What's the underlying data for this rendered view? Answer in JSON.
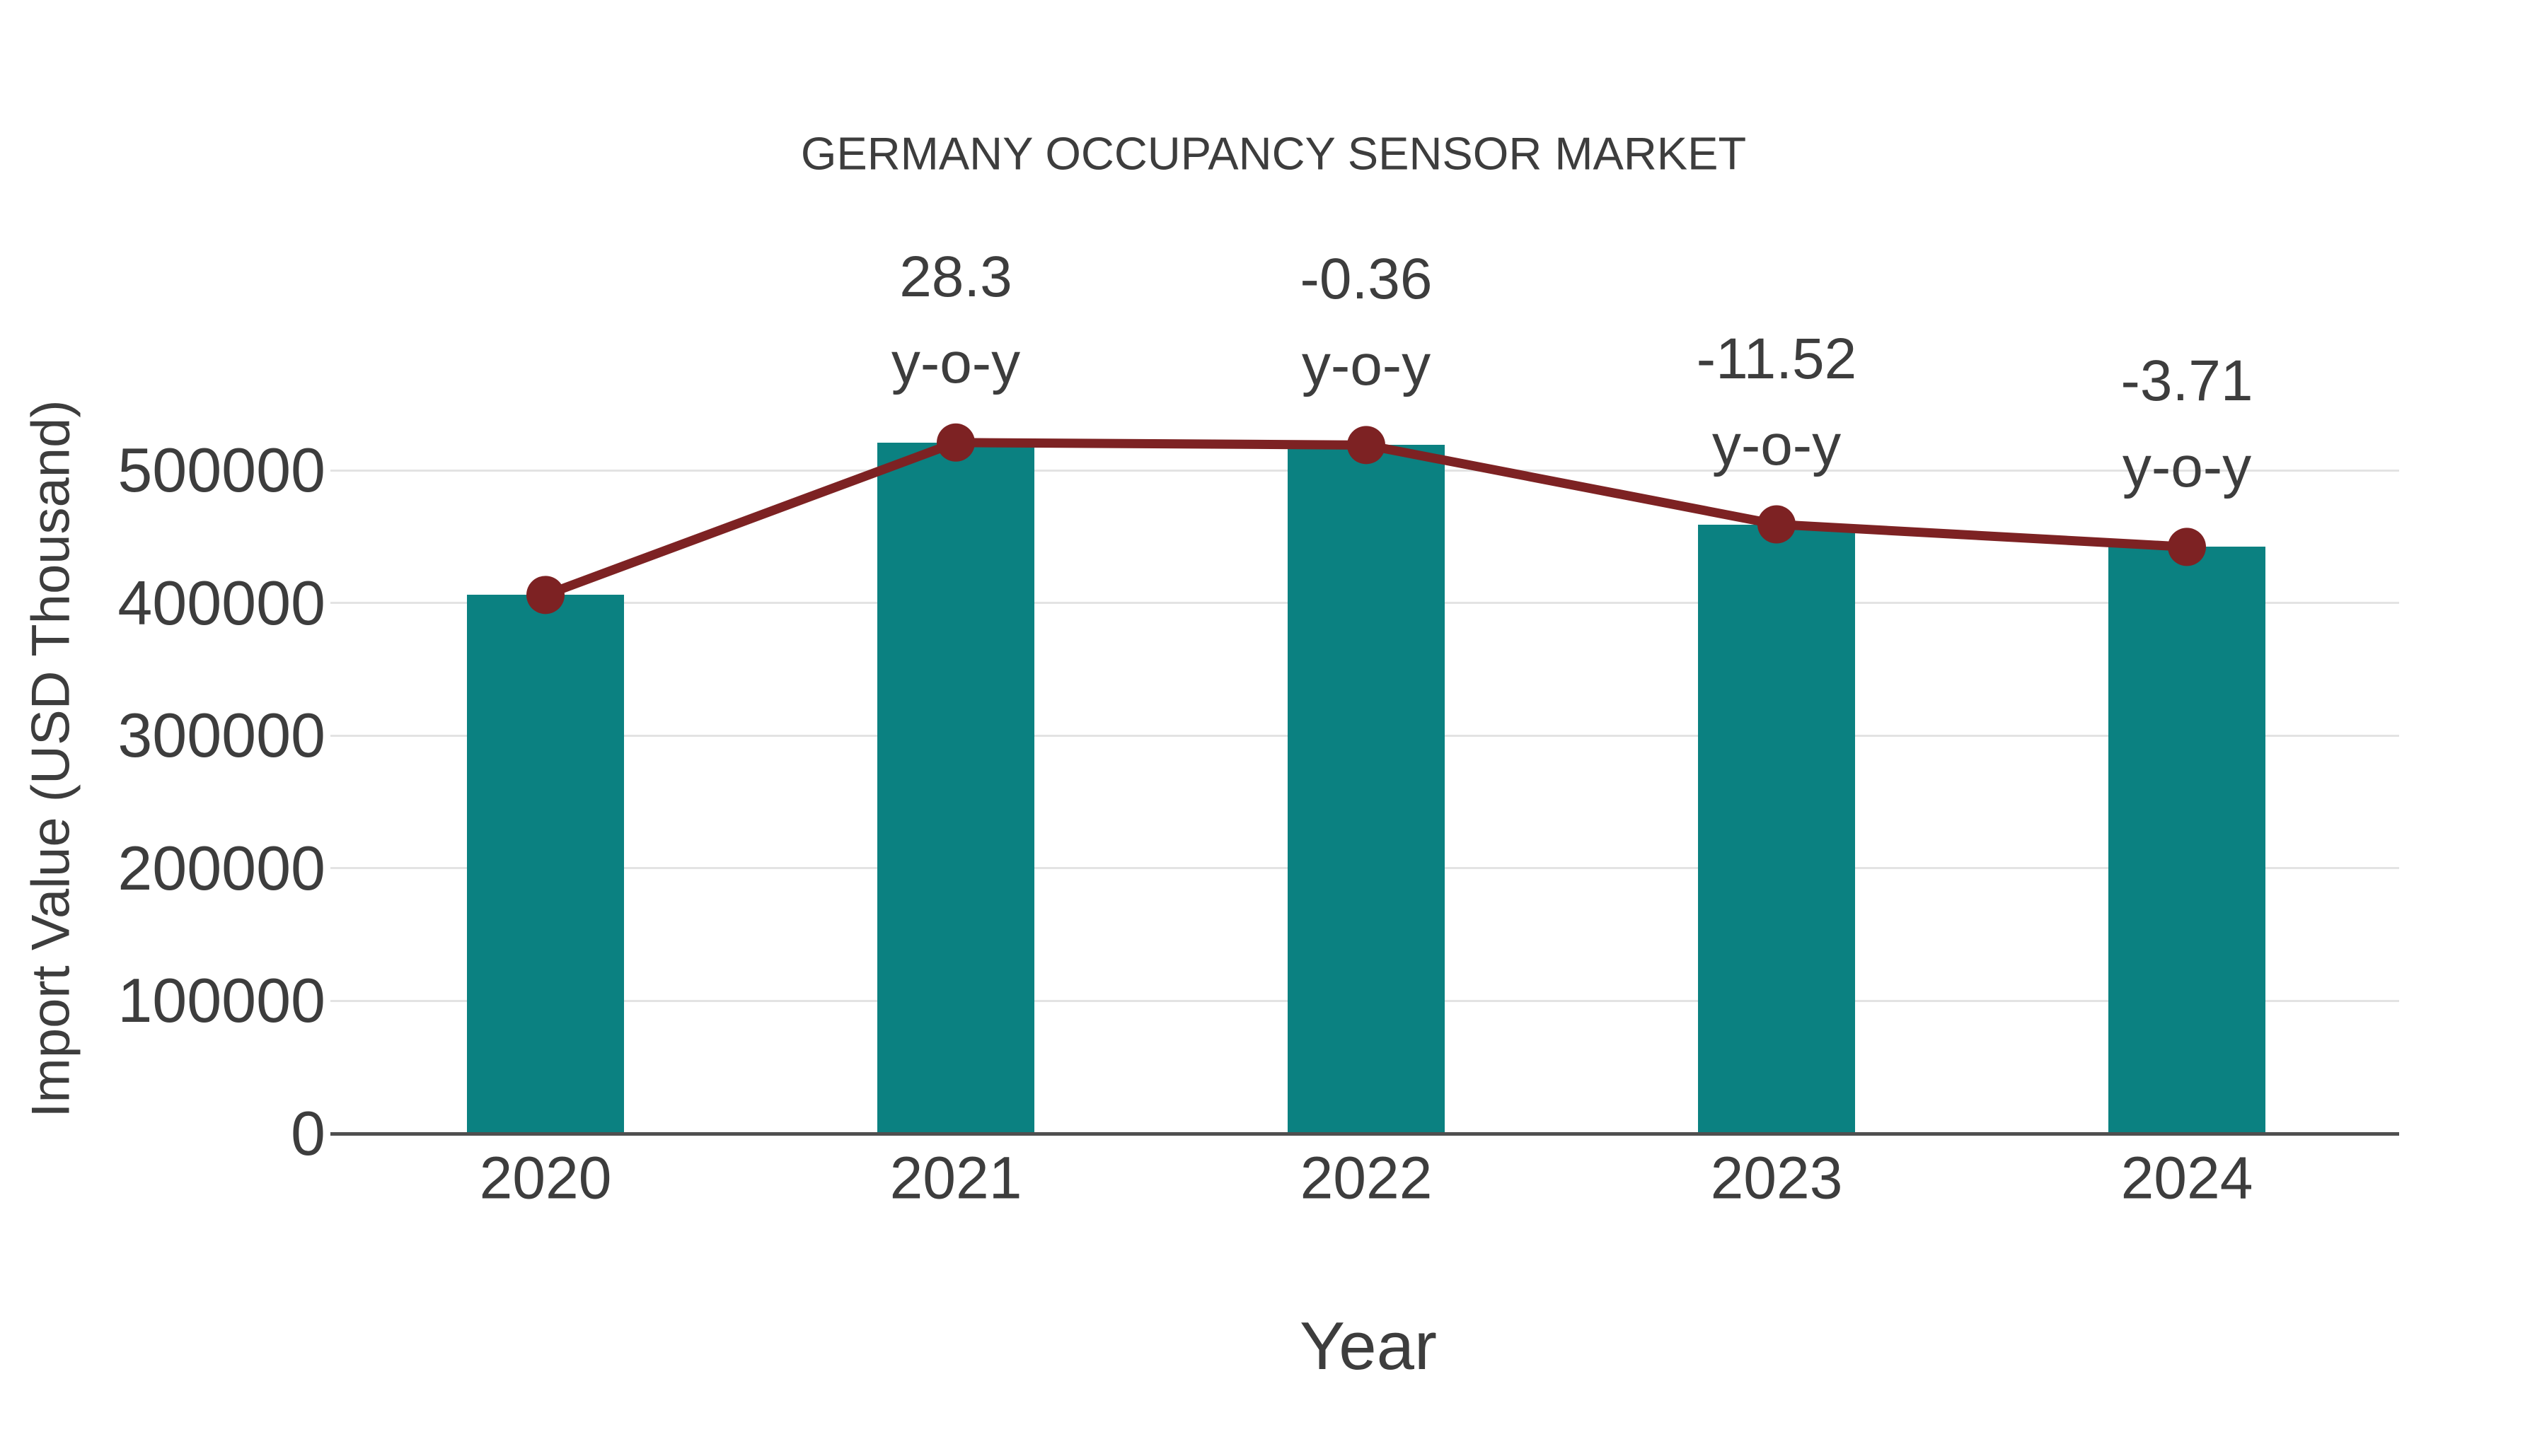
{
  "title": "GERMANY OCCUPANCY SENSOR MARKET",
  "chart_data": {
    "type": "bar",
    "title": "GERMANY OCCUPANCY SENSOR MARKET",
    "xlabel": "Year",
    "ylabel": "Import Value (USD Thousand)",
    "categories": [
      "2020",
      "2021",
      "2022",
      "2023",
      "2024"
    ],
    "series": [
      {
        "name": "Import Value (USD Thousand)",
        "type": "bar",
        "color": "#0b8181",
        "values": [
          406000,
          520900,
          519000,
          459200,
          442200
        ]
      },
      {
        "name": "Import Value trend line",
        "type": "line",
        "color": "#7d2223",
        "marker": "circle",
        "values": [
          406000,
          520900,
          519000,
          459200,
          442200
        ]
      }
    ],
    "annotations": [
      {
        "category": "2021",
        "value_label": "28.3",
        "suffix": "y-o-y"
      },
      {
        "category": "2022",
        "value_label": "-0.36",
        "suffix": "y-o-y"
      },
      {
        "category": "2023",
        "value_label": "-11.52",
        "suffix": "y-o-y"
      },
      {
        "category": "2024",
        "value_label": "-3.71",
        "suffix": "y-o-y"
      }
    ],
    "yoy_percent_by_year": {
      "2021": 28.3,
      "2022": -0.36,
      "2023": -11.52,
      "2024": -3.71
    },
    "yticks": [
      0,
      100000,
      200000,
      300000,
      400000,
      500000
    ],
    "ylim": [
      0,
      560000
    ],
    "grid": true,
    "legend": "none"
  },
  "colors": {
    "bar": "#0b8181",
    "line": "#7d2223",
    "text": "#3d3d3d",
    "grid": "#e3e3e3",
    "axis": "#4f4f4f",
    "background": "#ffffff"
  }
}
